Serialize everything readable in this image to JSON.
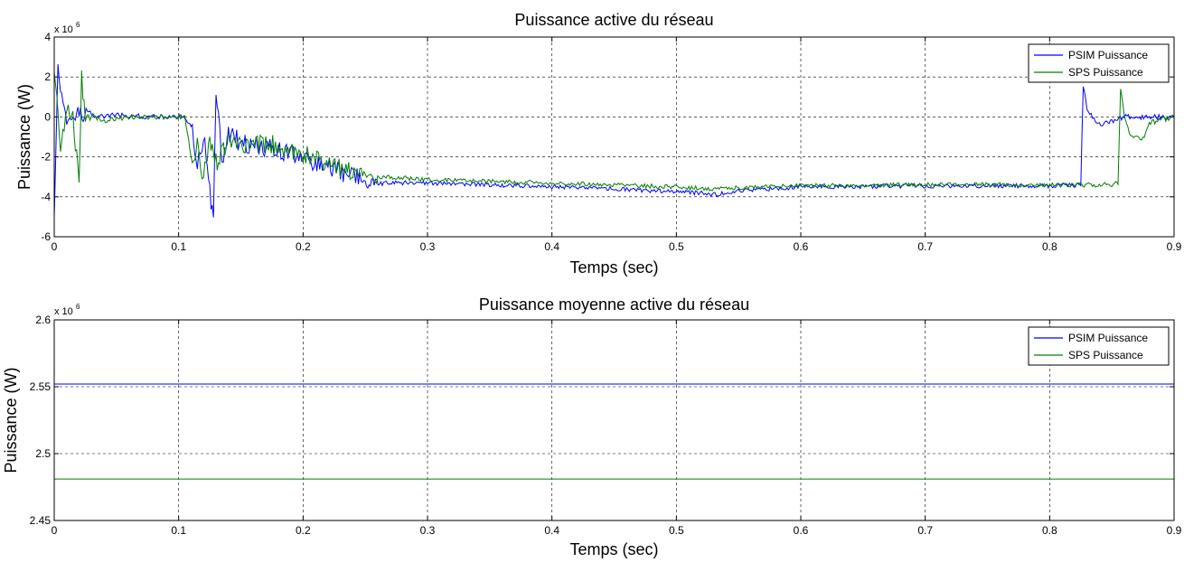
{
  "chart_data": [
    {
      "type": "line",
      "title": "Puissance active du réseau",
      "xlabel": "Temps (sec)",
      "ylabel": "Puissance (W)",
      "y_exponent_label": "x 10",
      "y_exponent_power": "6",
      "y_scale": 1000000,
      "xlim": [
        0,
        0.9
      ],
      "ylim": [
        -6,
        4
      ],
      "xticks": [
        "0",
        "0.1",
        "0.2",
        "0.3",
        "0.4",
        "0.5",
        "0.6",
        "0.7",
        "0.8",
        "0.9"
      ],
      "yticks": [
        "-6",
        "-4",
        "-2",
        "0",
        "2",
        "4"
      ],
      "grid": true,
      "legend_position": "top-right",
      "series": [
        {
          "name": "PSIM Puissance",
          "color": "#0000ff",
          "x": [
            0,
            0.003,
            0.006,
            0.01,
            0.015,
            0.02,
            0.03,
            0.05,
            0.08,
            0.105,
            0.11,
            0.115,
            0.12,
            0.125,
            0.128,
            0.13,
            0.135,
            0.14,
            0.15,
            0.17,
            0.19,
            0.2,
            0.22,
            0.24,
            0.25,
            0.255,
            0.27,
            0.3,
            0.4,
            0.45,
            0.5,
            0.52,
            0.53,
            0.55,
            0.6,
            0.7,
            0.8,
            0.825,
            0.827,
            0.83,
            0.84,
            0.86,
            0.9
          ],
          "y": [
            -4.8,
            2.6,
            1.0,
            0.0,
            -0.3,
            0.2,
            0.0,
            0.1,
            0.0,
            0.0,
            -0.5,
            -2.2,
            -1.0,
            -3.5,
            -5.5,
            1.5,
            -2.5,
            -0.8,
            -1.3,
            -1.5,
            -1.8,
            -2.0,
            -2.5,
            -3.0,
            -3.2,
            -3.4,
            -3.3,
            -3.3,
            -3.5,
            -3.6,
            -3.75,
            -3.8,
            -3.9,
            -3.7,
            -3.5,
            -3.45,
            -3.45,
            -3.4,
            1.6,
            0.3,
            -0.4,
            0.0,
            0.0
          ]
        },
        {
          "name": "SPS Puissance",
          "color": "#008000",
          "x": [
            0,
            0.005,
            0.01,
            0.015,
            0.02,
            0.022,
            0.025,
            0.03,
            0.04,
            0.06,
            0.08,
            0.105,
            0.11,
            0.115,
            0.12,
            0.125,
            0.13,
            0.135,
            0.14,
            0.15,
            0.17,
            0.19,
            0.2,
            0.22,
            0.24,
            0.25,
            0.27,
            0.3,
            0.4,
            0.5,
            0.53,
            0.6,
            0.7,
            0.8,
            0.83,
            0.85,
            0.855,
            0.857,
            0.86,
            0.865,
            0.875,
            0.88,
            0.9
          ],
          "y": [
            2.2,
            -1.5,
            0.3,
            0.0,
            -3.3,
            2.0,
            -0.3,
            0.1,
            -0.2,
            0.0,
            0.0,
            0.0,
            -2.0,
            -1.5,
            -3.0,
            -1.0,
            -2.3,
            -1.8,
            -1.2,
            -1.4,
            -1.3,
            -1.7,
            -1.9,
            -2.3,
            -2.8,
            -3.0,
            -3.0,
            -3.15,
            -3.3,
            -3.5,
            -3.6,
            -3.45,
            -3.4,
            -3.4,
            -3.4,
            -3.4,
            -3.3,
            1.5,
            0.0,
            -1.0,
            -1.1,
            -0.3,
            0.0
          ]
        }
      ]
    },
    {
      "type": "line",
      "title": "Puissance moyenne active du réseau",
      "xlabel": "Temps (sec)",
      "ylabel": "Puissance (W)",
      "y_exponent_label": "x 10",
      "y_exponent_power": "6",
      "y_scale": 1000000,
      "xlim": [
        0,
        0.9
      ],
      "ylim": [
        2.45,
        2.6
      ],
      "xticks": [
        "0",
        "0.1",
        "0.2",
        "0.3",
        "0.4",
        "0.5",
        "0.6",
        "0.7",
        "0.8",
        "0.9"
      ],
      "yticks": [
        "2.45",
        "2.5",
        "2.55",
        "2.6"
      ],
      "grid": true,
      "legend_position": "top-right",
      "series": [
        {
          "name": "PSIM Puissance",
          "color": "#0000ff",
          "x": [
            0,
            0.9
          ],
          "y": [
            2.552,
            2.552
          ]
        },
        {
          "name": "SPS Puissance",
          "color": "#008000",
          "x": [
            0,
            0.9
          ],
          "y": [
            2.481,
            2.481
          ]
        }
      ]
    }
  ]
}
